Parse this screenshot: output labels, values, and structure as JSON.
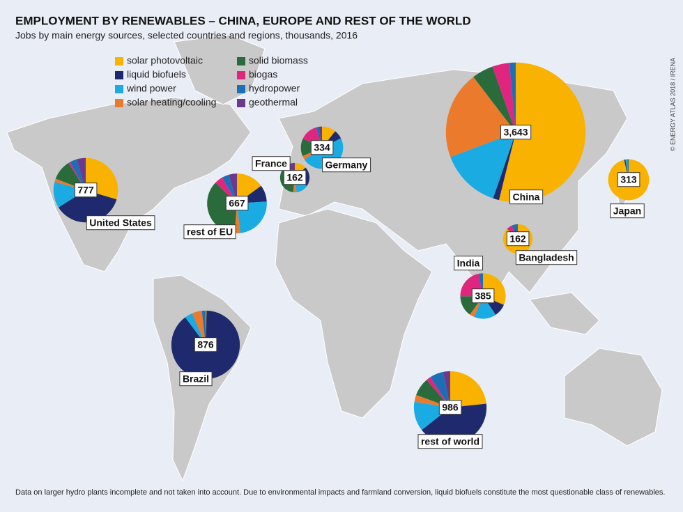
{
  "chart_data": {
    "type": "pie-map",
    "title": "EMPLOYMENT BY RENEWABLES – CHINA, EUROPE AND REST OF THE WORLD",
    "subtitle": "Jobs by main energy sources, selected countries and regions, thousands, 2016",
    "categories": [
      "solar photovoltaic",
      "liquid biofuels",
      "wind power",
      "solar heating/cooling",
      "solid biomass",
      "biogas",
      "hydropower",
      "geothermal"
    ],
    "colors": [
      "#f9b200",
      "#1f2a6e",
      "#1aabe2",
      "#ec7a2c",
      "#2a6b3c",
      "#e0257f",
      "#1d6fb5",
      "#6b3a8e"
    ],
    "pies": [
      {
        "name": "China",
        "total": 3643,
        "total_label": "3,643",
        "values": [
          1962,
          51,
          509,
          743,
          180,
          145,
          53,
          0
        ]
      },
      {
        "name": "United States",
        "total": 777,
        "values": [
          230,
          283,
          102,
          13,
          79,
          7,
          28,
          35
        ]
      },
      {
        "name": "Brazil",
        "total": 876,
        "values": [
          4,
          783,
          33,
          41,
          0,
          0,
          15,
          0
        ]
      },
      {
        "name": "Germany",
        "total": 334,
        "values": [
          36,
          23,
          160,
          10,
          45,
          45,
          7,
          8
        ]
      },
      {
        "name": "France",
        "total": 162,
        "values": [
          21,
          35,
          22,
          6,
          50,
          4,
          11,
          13
        ]
      },
      {
        "name": "rest of EU",
        "total": 667,
        "values": [
          100,
          60,
          162,
          20,
          240,
          30,
          25,
          30
        ]
      },
      {
        "name": "Japan",
        "total": 313,
        "values": [
          302,
          3,
          5,
          0,
          0,
          0,
          3,
          0
        ]
      },
      {
        "name": "India",
        "total": 385,
        "values": [
          121,
          35,
          61,
          13,
          58,
          85,
          12,
          0
        ]
      },
      {
        "name": "Bangladesh",
        "total": 162,
        "values": [
          141,
          0,
          0,
          0,
          1,
          9,
          11,
          0
        ]
      },
      {
        "name": "rest of world",
        "total": 986,
        "values": [
          230,
          405,
          130,
          30,
          80,
          20,
          60,
          31
        ]
      }
    ],
    "footnote": "Data on larger hydro plants incomplete and not taken into account. Due to environmental impacts and farmland conversion, liquid biofuels constitute the most questionable class of renewables.",
    "credit": "© ENERGY ATLAS 2018 / IRENA"
  }
}
